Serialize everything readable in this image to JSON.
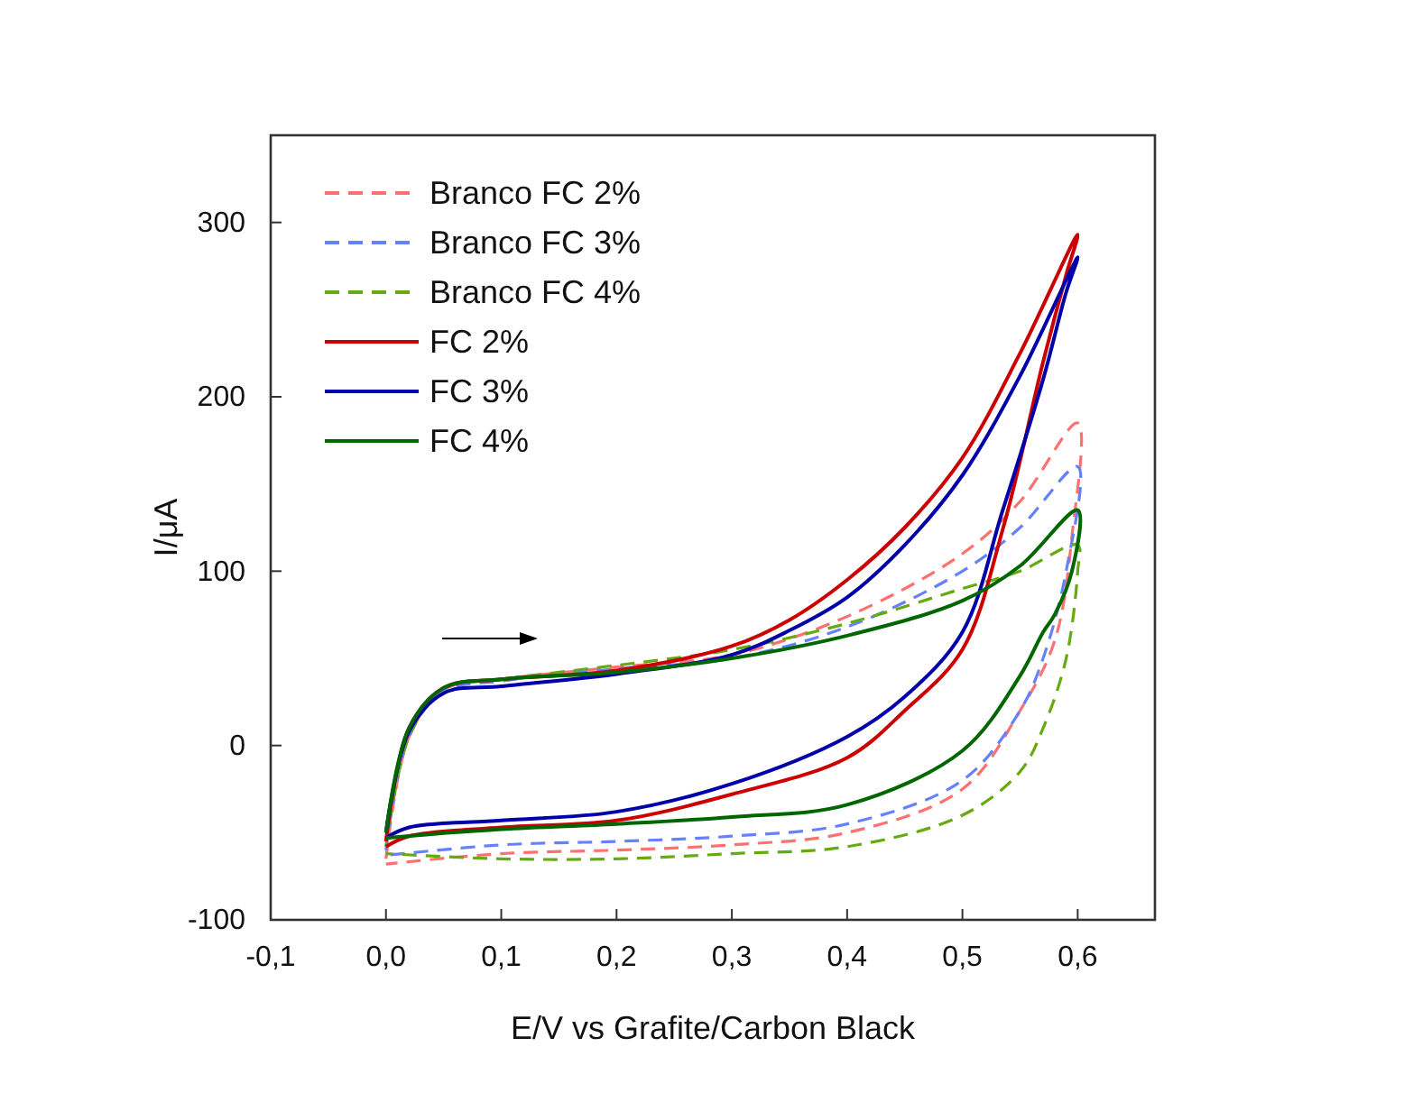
{
  "chart_data": {
    "type": "line",
    "xlabel": "E/V vs Grafite/Carbon Black",
    "ylabel": "I/μA",
    "xlim": [
      -0.1,
      0.667
    ],
    "ylim": [
      -100,
      350
    ],
    "xticks": [
      {
        "value": -0.1,
        "label": "-0,1"
      },
      {
        "value": 0,
        "label": "0,0"
      },
      {
        "value": 0.1,
        "label": "0,1"
      },
      {
        "value": 0.2,
        "label": "0,2"
      },
      {
        "value": 0.3,
        "label": "0,3"
      },
      {
        "value": 0.4,
        "label": "0,4"
      },
      {
        "value": 0.5,
        "label": "0,5"
      },
      {
        "value": 0.6,
        "label": "0,6"
      }
    ],
    "yticks": [
      -100,
      0,
      100,
      200,
      300
    ],
    "legend": "top left",
    "grid": false,
    "series": [
      {
        "name": "Branco FC 2%",
        "color": "#ff7070",
        "line_style": "dashed",
        "x": [
          0,
          0.02,
          0.05,
          0.1,
          0.2,
          0.3,
          0.4,
          0.5,
          0.55,
          0.6,
          0.595,
          0.58,
          0.55,
          0.5,
          0.4,
          0.3,
          0.2,
          0.1,
          0
        ],
        "values": [
          -65,
          5,
          32,
          38,
          45,
          52,
          74,
          110,
          140,
          185,
          120,
          60,
          20,
          -25,
          -50,
          -57,
          -60,
          -62,
          -68
        ]
      },
      {
        "name": "Branco FC 3%",
        "color": "#6680ff",
        "line_style": "dashed",
        "x": [
          0,
          0.02,
          0.05,
          0.1,
          0.2,
          0.3,
          0.4,
          0.5,
          0.55,
          0.6,
          0.59,
          0.57,
          0.55,
          0.5,
          0.4,
          0.3,
          0.2,
          0.1,
          0
        ],
        "values": [
          -60,
          5,
          31,
          37,
          44,
          50,
          68,
          100,
          125,
          160,
          100,
          50,
          20,
          -20,
          -45,
          -52,
          -55,
          -57,
          -63
        ]
      },
      {
        "name": "Branco FC 4%",
        "color": "#66aa11",
        "line_style": "dashed",
        "x": [
          0,
          0.02,
          0.05,
          0.1,
          0.2,
          0.3,
          0.4,
          0.5,
          0.55,
          0.6,
          0.6,
          0.59,
          0.57,
          0.55,
          0.5,
          0.4,
          0.3,
          0.2,
          0.1,
          0
        ],
        "values": [
          -58,
          5,
          33,
          38,
          46,
          55,
          70,
          90,
          100,
          115,
          100,
          50,
          10,
          -15,
          -40,
          -58,
          -62,
          -65,
          -65,
          -62
        ]
      },
      {
        "name": "FC 2%",
        "color": "#cc0000",
        "line_style": "solid",
        "x": [
          0,
          0.02,
          0.05,
          0.1,
          0.2,
          0.3,
          0.35,
          0.4,
          0.45,
          0.5,
          0.55,
          0.6,
          0.59,
          0.57,
          0.535,
          0.5,
          0.45,
          0.4,
          0.3,
          0.2,
          0.1,
          0.02,
          0
        ],
        "values": [
          -55,
          10,
          33,
          38,
          43,
          57,
          72,
          95,
          125,
          165,
          225,
          293,
          270,
          220,
          124,
          55,
          20,
          -7,
          -28,
          -43,
          -47,
          -52,
          -58
        ]
      },
      {
        "name": "FC 3%",
        "color": "#0000aa",
        "line_style": "solid",
        "x": [
          0,
          0.02,
          0.05,
          0.1,
          0.2,
          0.3,
          0.35,
          0.4,
          0.45,
          0.5,
          0.55,
          0.6,
          0.59,
          0.57,
          0.535,
          0.5,
          0.45,
          0.4,
          0.3,
          0.2,
          0.1,
          0.02,
          0
        ],
        "values": [
          -50,
          8,
          30,
          34,
          41,
          52,
          66,
          85,
          115,
          155,
          212,
          280,
          260,
          210,
          135,
          65,
          28,
          5,
          -22,
          -38,
          -43,
          -47,
          -53
        ]
      },
      {
        "name": "FC 4%",
        "color": "#006600",
        "line_style": "solid",
        "x": [
          0,
          0.02,
          0.05,
          0.1,
          0.2,
          0.3,
          0.4,
          0.5,
          0.55,
          0.6,
          0.595,
          0.58,
          0.57,
          0.55,
          0.5,
          0.4,
          0.3,
          0.2,
          0.1,
          0
        ],
        "values": [
          -50,
          10,
          33,
          38,
          42,
          50,
          63,
          83,
          103,
          135,
          100,
          75,
          65,
          40,
          -3,
          -34,
          -41,
          -45,
          -48,
          -53
        ]
      }
    ]
  }
}
